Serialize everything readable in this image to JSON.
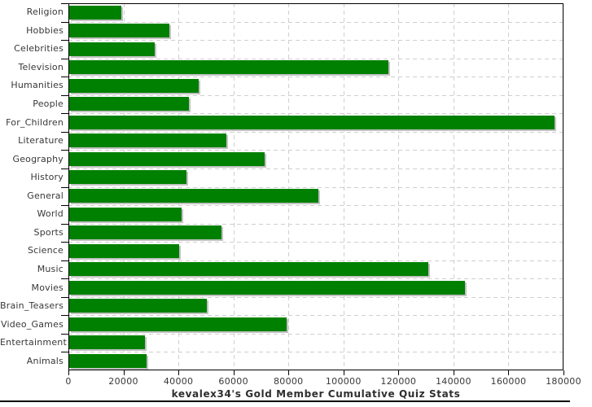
{
  "chart_data": {
    "type": "bar",
    "orientation": "horizontal",
    "title": "kevalex34's Gold Member Cumulative Quiz Stats",
    "categories": [
      "Religion",
      "Hobbies",
      "Celebrities",
      "Television",
      "Humanities",
      "People",
      "For_Children",
      "Literature",
      "Geography",
      "History",
      "General",
      "World",
      "Sports",
      "Science",
      "Music",
      "Movies",
      "Brain_Teasers",
      "Video_Games",
      "Entertainment",
      "Animals"
    ],
    "values": [
      19000,
      36500,
      31000,
      116000,
      47000,
      43500,
      176500,
      57000,
      71000,
      42500,
      90500,
      41000,
      55500,
      40000,
      130500,
      144000,
      50000,
      79000,
      27500,
      28000
    ],
    "xlim": [
      0,
      180000
    ],
    "x_ticks": [
      0,
      20000,
      40000,
      60000,
      80000,
      100000,
      120000,
      140000,
      160000,
      180000
    ],
    "x_tick_labels": [
      "0",
      "20000",
      "40000",
      "60000",
      "80000",
      "100000",
      "120000",
      "140000",
      "160000",
      "180000"
    ],
    "xlabel": "",
    "ylabel": "",
    "grid": "dashed-both-axes",
    "legend": "none",
    "bar_color": "#008000",
    "bar_shadow_color": "#c2c2c2",
    "gridline_color": "#cfcfcf",
    "axis_color": "#000000",
    "label_color": "#383838"
  }
}
